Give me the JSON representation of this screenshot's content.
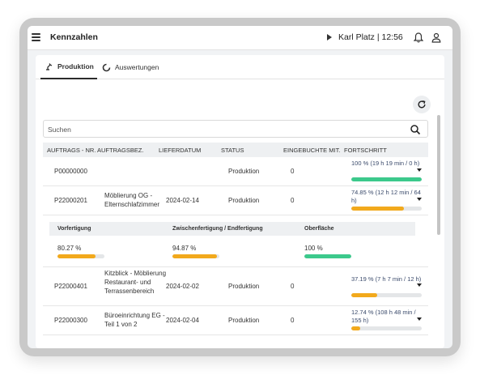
{
  "header": {
    "title": "Kennzahlen",
    "user_info": "Karl Platz | 12:56"
  },
  "tabs": [
    {
      "label": "Produktion",
      "active": true
    },
    {
      "label": "Auswertungen",
      "active": false
    }
  ],
  "search": {
    "placeholder": "Suchen",
    "value": ""
  },
  "table": {
    "columns": [
      "AUFTRAGS - NR.",
      "AUFTRAGSBEZ.",
      "LIEFERDATUM",
      "STATUS",
      "EINGEBUCHTE MIT.",
      "FORTSCHRITT"
    ],
    "rows": [
      {
        "nr": "P00000000",
        "bez": "",
        "datum": "",
        "status": "Produktion",
        "mit": "0",
        "fortschritt": "100 % (19 h 19 min / 0 h)",
        "progress": 100,
        "bar_color": "#3cc98c"
      },
      {
        "nr": "P22000201",
        "bez": "Möblierung OG - Elternschlafzimmer",
        "datum": "2024-02-14",
        "status": "Produktion",
        "mit": "0",
        "fortschritt": "74.85 % (12 h 12 min / 64 h)",
        "progress": 74.85,
        "bar_color": "#f2a91c"
      },
      {
        "nr": "P22000401",
        "bez": "Kitzblick - Möblierung Restaurant- und Terrassenbereich",
        "datum": "2024-02-02",
        "status": "Produktion",
        "mit": "0",
        "fortschritt": "37.19 % (7 h 7 min / 12 h)",
        "progress": 37.19,
        "bar_color": "#f2a91c"
      },
      {
        "nr": "P22000300",
        "bez": "Büroeinrichtung EG - Teil 1 von 2",
        "datum": "2024-02-04",
        "status": "Produktion",
        "mit": "0",
        "fortschritt": "12.74 % (108 h 48 min / 155 h)",
        "progress": 12.74,
        "bar_color": "#f2a91c"
      }
    ]
  },
  "detail": {
    "columns": [
      "Vorfertigung",
      "Zwischenfertigung / Endfertigung",
      "Oberfläche"
    ],
    "values": [
      {
        "label": "80.27 %",
        "progress": 80.27,
        "color": "#f2a91c"
      },
      {
        "label": "94.87 %",
        "progress": 94.87,
        "color": "#f2a91c"
      },
      {
        "label": "100 %",
        "progress": 100,
        "color": "#3cc98c"
      }
    ]
  },
  "colors": {
    "green": "#3cc98c",
    "orange": "#f2a91c"
  },
  "icons": [
    "menu-icon",
    "play-icon",
    "bell-icon",
    "person-icon",
    "refresh-icon",
    "search-icon",
    "chevron-down-icon"
  ]
}
